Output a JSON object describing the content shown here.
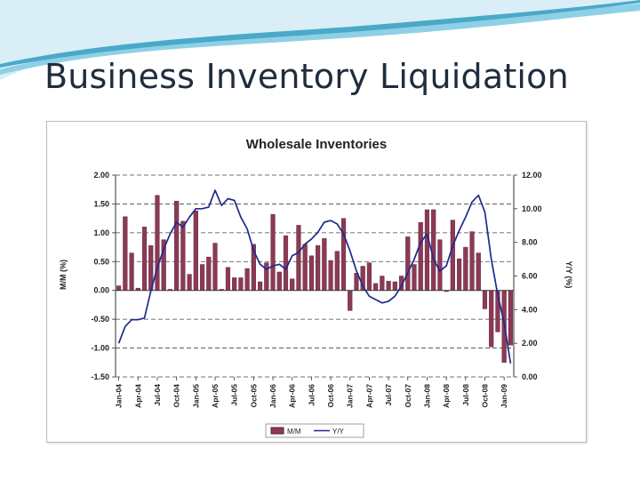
{
  "slide": {
    "title": "Business Inventory Liquidation"
  },
  "colors": {
    "bar_fill": "#8b3a56",
    "bar_stroke": "#5a1f34",
    "line": "#1e2a8c",
    "swoosh_light": "#d9eef6",
    "swoosh_mid": "#8ed0e6",
    "swoosh_dark": "#4aa9c8"
  },
  "chart_data": {
    "type": "bar+line",
    "title": "Wholesale Inventories",
    "ylabel": "M/M (%)",
    "y2label": "Y/Y (%)",
    "ylim": [
      -1.5,
      2.0
    ],
    "y2lim": [
      0,
      12
    ],
    "yticks": [
      "2.00",
      "1.50",
      "1.00",
      "0.50",
      "0.00",
      "-0.50",
      "-1.00",
      "-1.50"
    ],
    "y2ticks": [
      "12.00",
      "10.00",
      "8.00",
      "6.00",
      "4.00",
      "2.00",
      "0.00"
    ],
    "x_tick_labels": [
      "Jan-04",
      "Apr-04",
      "Jul-04",
      "Oct-04",
      "Jan-05",
      "Apr-05",
      "Jul-05",
      "Oct-05",
      "Jan-06",
      "Apr-06",
      "Jul-06",
      "Oct-06",
      "Jan-07",
      "Apr-07",
      "Jul-07",
      "Oct-07",
      "Jan-08",
      "Apr-08",
      "Jul-08",
      "Oct-08",
      "Jan-09"
    ],
    "dashed_grid": true,
    "legend_position": "bottom",
    "series": [
      {
        "name": "M/M",
        "type": "bar",
        "values": [
          0.08,
          1.28,
          0.65,
          0.04,
          1.1,
          0.78,
          1.65,
          0.88,
          0.02,
          1.55,
          1.2,
          0.28,
          1.38,
          0.45,
          0.58,
          0.82,
          0.02,
          0.4,
          0.22,
          0.22,
          0.38,
          0.8,
          0.15,
          0.48,
          1.32,
          0.32,
          0.95,
          0.2,
          1.13,
          0.8,
          0.6,
          0.78,
          0.9,
          0.52,
          0.68,
          1.25,
          -0.35,
          0.3,
          0.42,
          0.48,
          0.12,
          0.25,
          0.16,
          0.15,
          0.25,
          0.93,
          0.45,
          1.18,
          1.4,
          1.4,
          0.88,
          -0.02,
          1.22,
          0.55,
          0.75,
          1.02,
          0.65,
          -0.32,
          -0.98,
          -0.72,
          -1.25,
          -0.95
        ]
      },
      {
        "name": "Y/Y",
        "type": "line",
        "values": [
          2.0,
          3.0,
          3.4,
          3.4,
          3.5,
          5.1,
          6.5,
          7.6,
          8.5,
          9.2,
          8.9,
          9.5,
          10.0,
          10.0,
          10.1,
          11.1,
          10.2,
          10.6,
          10.5,
          9.5,
          8.8,
          7.5,
          6.7,
          6.4,
          6.6,
          6.7,
          6.4,
          7.2,
          7.4,
          7.9,
          8.2,
          8.6,
          9.2,
          9.3,
          9.1,
          8.5,
          7.5,
          6.3,
          5.4,
          4.8,
          4.6,
          4.4,
          4.5,
          4.8,
          5.4,
          6.2,
          7.0,
          8.0,
          8.5,
          7.0,
          6.3,
          6.6,
          7.8,
          8.7,
          9.5,
          10.4,
          10.8,
          9.8,
          7.0,
          4.9,
          3.2,
          0.8
        ]
      }
    ]
  }
}
